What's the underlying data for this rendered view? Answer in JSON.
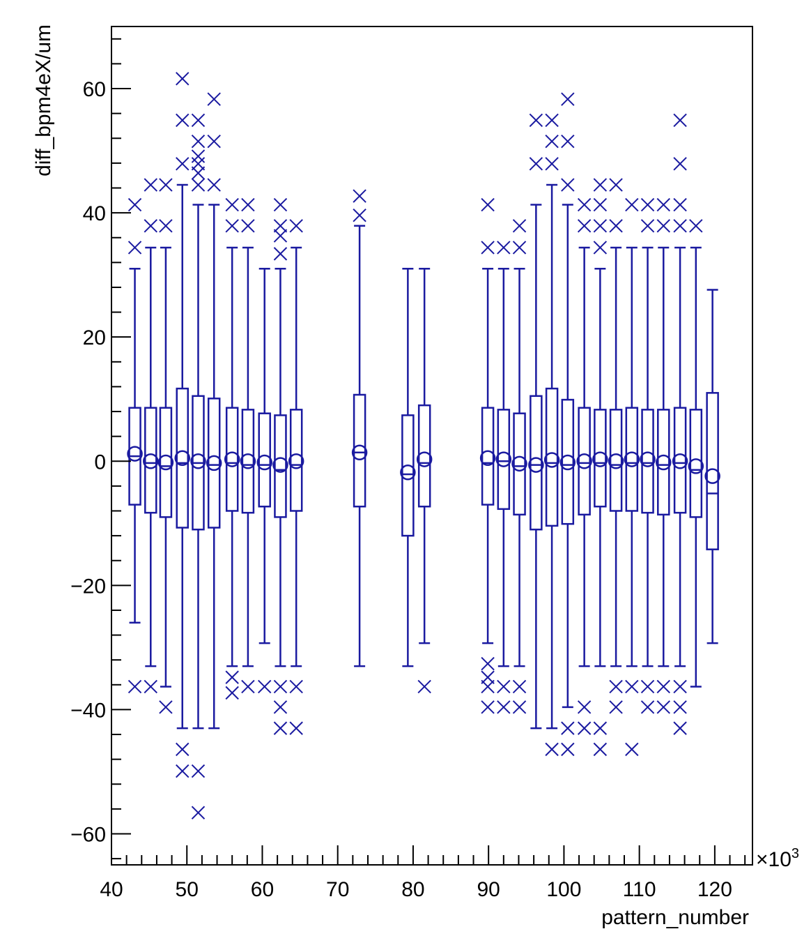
{
  "chart_data": {
    "type": "box",
    "xlabel": "pattern_number",
    "ylabel": "diff_bpm4eX/um",
    "x_exponent_label": "×10",
    "x_exponent_power": "3",
    "xlim": [
      40,
      125
    ],
    "ylim": [
      -65,
      70
    ],
    "x_ticks": [
      40,
      50,
      60,
      70,
      80,
      90,
      100,
      110,
      120
    ],
    "y_ticks": [
      -60,
      -40,
      -20,
      0,
      20,
      40,
      60
    ],
    "color": "#1a1aa0",
    "boxes": [
      {
        "x": 43.1,
        "q1": -7,
        "q3": 8.6,
        "median": 0.8,
        "mean": 1.2,
        "wlo": -26,
        "whi": 31,
        "outliers": [
          41.3,
          34.4,
          -36.3
        ]
      },
      {
        "x": 45.2,
        "q1": -8.3,
        "q3": 8.6,
        "median": -0.3,
        "mean": 0,
        "wlo": -33,
        "whi": 34.4,
        "outliers": [
          44.5,
          37.9,
          -36.3
        ]
      },
      {
        "x": 47.2,
        "q1": -9,
        "q3": 8.6,
        "median": -0.8,
        "mean": -0.2,
        "wlo": -36.3,
        "whi": 34.4,
        "outliers": [
          44.5,
          37.9,
          -39.6
        ]
      },
      {
        "x": 49.4,
        "q1": -10.7,
        "q3": 11.7,
        "median": -0.3,
        "mean": 0.5,
        "wlo": -43,
        "whi": 44.5,
        "outliers": [
          61.6,
          54.9,
          47.9,
          -46.4,
          -49.9
        ]
      },
      {
        "x": 51.5,
        "q1": -11,
        "q3": 10.5,
        "median": -0.3,
        "mean": 0,
        "wlo": -43,
        "whi": 41.3,
        "outliers": [
          54.9,
          51.5,
          49.1,
          47.9,
          46.4,
          44.5,
          -49.9,
          -56.6
        ]
      },
      {
        "x": 53.6,
        "q1": -10.7,
        "q3": 10.1,
        "median": -0.6,
        "mean": -0.3,
        "wlo": -43,
        "whi": 41.3,
        "outliers": [
          58.3,
          51.5,
          44.5
        ]
      },
      {
        "x": 56.0,
        "q1": -8,
        "q3": 8.6,
        "median": -0.3,
        "mean": 0.3,
        "wlo": -33,
        "whi": 34.4,
        "outliers": [
          41.3,
          37.9,
          -34.8,
          -37.3
        ]
      },
      {
        "x": 58.1,
        "q1": -8.3,
        "q3": 8.3,
        "median": -0.6,
        "mean": 0,
        "wlo": -33,
        "whi": 34.4,
        "outliers": [
          41.3,
          37.9,
          -36.3
        ]
      },
      {
        "x": 60.3,
        "q1": -7.3,
        "q3": 7.7,
        "median": -0.6,
        "mean": -0.2,
        "wlo": -29.3,
        "whi": 31,
        "outliers": [
          -36.3
        ]
      },
      {
        "x": 62.4,
        "q1": -9,
        "q3": 7.4,
        "median": -1.4,
        "mean": -0.6,
        "wlo": -33,
        "whi": 31,
        "outliers": [
          41.3,
          37.9,
          36.3,
          33.4,
          -36.3,
          -39.6,
          -43
        ]
      },
      {
        "x": 64.5,
        "q1": -8,
        "q3": 8.3,
        "median": -0.6,
        "mean": 0,
        "wlo": -33,
        "whi": 34.4,
        "outliers": [
          37.9,
          -36.3,
          -43
        ]
      },
      {
        "x": 72.9,
        "q1": -7.3,
        "q3": 10.7,
        "median": 1.4,
        "mean": 1.4,
        "wlo": -33,
        "whi": 37.9,
        "outliers": [
          42.7,
          39.6
        ]
      },
      {
        "x": 79.3,
        "q1": -12,
        "q3": 7.4,
        "median": -2.1,
        "mean": -1.8,
        "wlo": -33,
        "whi": 31,
        "outliers": []
      },
      {
        "x": 81.5,
        "q1": -7.3,
        "q3": 9,
        "median": -0.3,
        "mean": 0.3,
        "wlo": -29.3,
        "whi": 31,
        "outliers": [
          -36.3
        ]
      },
      {
        "x": 89.9,
        "q1": -7,
        "q3": 8.6,
        "median": -0.3,
        "mean": 0.5,
        "wlo": -29.3,
        "whi": 31,
        "outliers": [
          41.3,
          34.4,
          -32.6,
          -34.8,
          -36.3,
          -39.6
        ]
      },
      {
        "x": 92.0,
        "q1": -7.7,
        "q3": 8.3,
        "median": 0,
        "mean": 0.3,
        "wlo": -33,
        "whi": 31,
        "outliers": [
          34.4,
          -36.3,
          -39.6
        ]
      },
      {
        "x": 94.1,
        "q1": -8.6,
        "q3": 7.7,
        "median": -0.8,
        "mean": -0.4,
        "wlo": -33,
        "whi": 31,
        "outliers": [
          37.9,
          34.4,
          -36.3,
          -39.6
        ]
      },
      {
        "x": 96.3,
        "q1": -11,
        "q3": 10.5,
        "median": -0.6,
        "mean": -0.6,
        "wlo": -43,
        "whi": 41.3,
        "outliers": [
          54.9,
          47.9
        ]
      },
      {
        "x": 98.4,
        "q1": -10.4,
        "q3": 11.7,
        "median": -0.3,
        "mean": 0.2,
        "wlo": -43,
        "whi": 44.5,
        "outliers": [
          54.9,
          51.5,
          47.9,
          -46.4
        ]
      },
      {
        "x": 100.5,
        "q1": -10.1,
        "q3": 9.9,
        "median": -0.6,
        "mean": -0.2,
        "wlo": -39.6,
        "whi": 41.3,
        "outliers": [
          58.3,
          51.5,
          44.5,
          -43,
          -46.4
        ]
      },
      {
        "x": 102.7,
        "q1": -8.6,
        "q3": 8.6,
        "median": -0.3,
        "mean": 0,
        "wlo": -33,
        "whi": 34.4,
        "outliers": [
          41.3,
          37.9,
          -39.6,
          -43
        ]
      },
      {
        "x": 104.8,
        "q1": -7.3,
        "q3": 8.3,
        "median": -0.3,
        "mean": 0.3,
        "wlo": -33,
        "whi": 31,
        "outliers": [
          44.5,
          41.3,
          37.9,
          34.4,
          -43,
          -46.4
        ]
      },
      {
        "x": 106.9,
        "q1": -8,
        "q3": 8.3,
        "median": -0.6,
        "mean": 0,
        "wlo": -33,
        "whi": 34.4,
        "outliers": [
          44.5,
          37.9,
          -36.3,
          -39.6
        ]
      },
      {
        "x": 109.0,
        "q1": -8,
        "q3": 8.6,
        "median": -0.3,
        "mean": 0.3,
        "wlo": -33,
        "whi": 34.4,
        "outliers": [
          41.3,
          -36.3,
          -46.4
        ]
      },
      {
        "x": 111.1,
        "q1": -8.3,
        "q3": 8.3,
        "median": -0.3,
        "mean": 0.3,
        "wlo": -33,
        "whi": 34.4,
        "outliers": [
          41.3,
          37.9,
          -36.3,
          -39.6
        ]
      },
      {
        "x": 113.2,
        "q1": -8.6,
        "q3": 8.3,
        "median": -0.6,
        "mean": -0.2,
        "wlo": -33,
        "whi": 34.4,
        "outliers": [
          41.3,
          37.9,
          -36.3,
          -39.6
        ]
      },
      {
        "x": 115.4,
        "q1": -8.3,
        "q3": 8.6,
        "median": -0.3,
        "mean": 0,
        "wlo": -33,
        "whi": 34.4,
        "outliers": [
          54.9,
          47.9,
          41.3,
          37.9,
          -36.3,
          -39.6,
          -43
        ]
      },
      {
        "x": 117.5,
        "q1": -9,
        "q3": 8.3,
        "median": -1.4,
        "mean": -0.8,
        "wlo": -36.3,
        "whi": 34.4,
        "outliers": [
          37.9
        ]
      },
      {
        "x": 119.7,
        "q1": -14.2,
        "q3": 11,
        "median": -5.2,
        "mean": -2.4,
        "wlo": -29.3,
        "whi": 27.6,
        "outliers": []
      }
    ]
  }
}
